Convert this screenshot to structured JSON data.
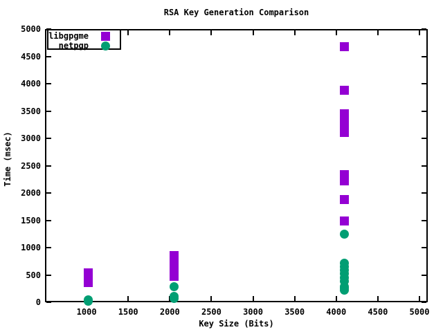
{
  "chart_data": {
    "type": "scatter",
    "title": "RSA Key Generation Comparison",
    "xlabel": "Key Size (Bits)",
    "ylabel": "Time (msec)",
    "xlim": [
      500,
      5100
    ],
    "ylim": [
      0,
      5000
    ],
    "x_ticks": [
      1000,
      1500,
      2000,
      2500,
      3000,
      3500,
      4000,
      4500,
      5000
    ],
    "y_ticks": [
      0,
      500,
      1000,
      1500,
      2000,
      2500,
      3000,
      3500,
      4000,
      4500,
      5000
    ],
    "grid": false,
    "legend_position": "top-left",
    "background_color": "#ffffff",
    "axis_color": "#000000",
    "series": [
      {
        "name": "libgpgme",
        "marker": "square",
        "color": "#9400D3",
        "points": [
          [
            1024,
            360
          ],
          [
            1024,
            420
          ],
          [
            1024,
            480
          ],
          [
            1024,
            540
          ],
          [
            2048,
            475
          ],
          [
            2048,
            550
          ],
          [
            2048,
            625
          ],
          [
            2048,
            700
          ],
          [
            2048,
            775
          ],
          [
            2048,
            855
          ],
          [
            4096,
            1490
          ],
          [
            4096,
            1880
          ],
          [
            4096,
            2220
          ],
          [
            4096,
            2280
          ],
          [
            4096,
            2335
          ],
          [
            4096,
            3110
          ],
          [
            4096,
            3195
          ],
          [
            4096,
            3280
          ],
          [
            4096,
            3365
          ],
          [
            4096,
            3450
          ],
          [
            4096,
            3880
          ],
          [
            4096,
            4680
          ]
        ]
      },
      {
        "name": "netpgp",
        "marker": "circle",
        "color": "#009E73",
        "points": [
          [
            1024,
            20
          ],
          [
            1024,
            45
          ],
          [
            2048,
            70
          ],
          [
            2048,
            105
          ],
          [
            2048,
            290
          ],
          [
            4096,
            220
          ],
          [
            4096,
            255
          ],
          [
            4096,
            290
          ],
          [
            4096,
            390
          ],
          [
            4096,
            455
          ],
          [
            4096,
            520
          ],
          [
            4096,
            585
          ],
          [
            4096,
            650
          ],
          [
            4096,
            715
          ],
          [
            4096,
            1250
          ]
        ]
      }
    ]
  }
}
